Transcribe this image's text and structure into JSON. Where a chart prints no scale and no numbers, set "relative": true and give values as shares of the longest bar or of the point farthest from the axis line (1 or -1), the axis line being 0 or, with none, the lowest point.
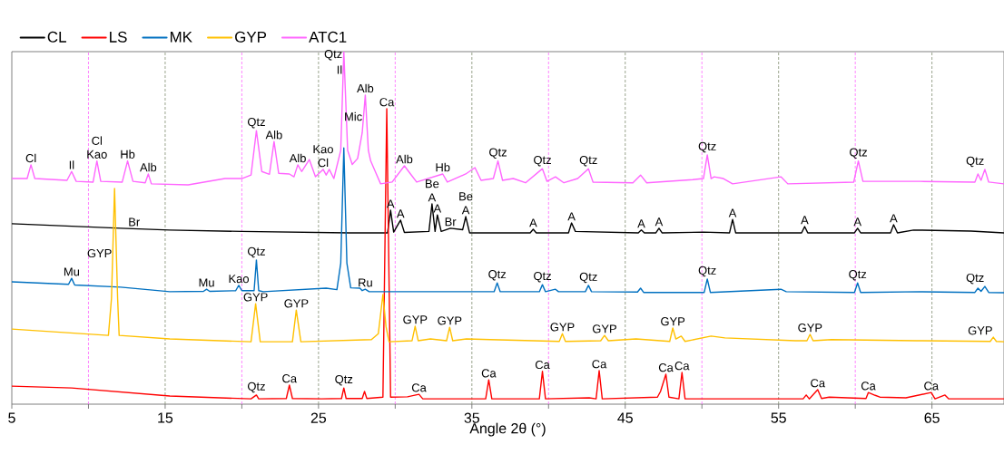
{
  "chart_data": {
    "type": "line",
    "relative": true,
    "xlabel": "Angle 2θ (°)",
    "xlim": [
      5,
      69.7
    ],
    "xticks": [
      5,
      {
        "value": 10,
        "label": null
      },
      15,
      {
        "value": 20,
        "label": null
      },
      25,
      {
        "value": 30,
        "label": null
      },
      35,
      {
        "value": 40,
        "label": null
      },
      45,
      {
        "value": 50,
        "label": null
      },
      55,
      {
        "value": 60,
        "label": null
      },
      65
    ],
    "legend": "top left",
    "series": [
      {
        "name": "CL",
        "color": "#000000",
        "x": [
          5,
          12.1,
          15.3,
          20,
          27,
          29.5,
          29.7,
          29.9,
          30.35,
          30.6,
          32.2,
          32.4,
          32.6,
          32.75,
          33.0,
          33.6,
          34.4,
          34.6,
          34.85,
          38.8,
          39.0,
          39.2,
          41.3,
          41.5,
          41.75,
          45.85,
          46.05,
          46.25,
          47.0,
          47.2,
          47.4,
          50.1,
          51.8,
          52.0,
          52.2,
          56.5,
          56.7,
          56.9,
          59.95,
          60.15,
          60.35,
          62.3,
          62.5,
          62.75,
          63.8,
          67.55,
          69.7
        ],
        "values": [
          0.512,
          0.499,
          0.494,
          0.49,
          0.486,
          0.486,
          0.55,
          0.488,
          0.522,
          0.487,
          0.49,
          0.568,
          0.49,
          0.537,
          0.49,
          0.499,
          0.495,
          0.532,
          0.486,
          0.486,
          0.496,
          0.486,
          0.486,
          0.514,
          0.49,
          0.486,
          0.494,
          0.486,
          0.486,
          0.499,
          0.486,
          0.488,
          0.486,
          0.524,
          0.486,
          0.486,
          0.504,
          0.486,
          0.486,
          0.499,
          0.486,
          0.486,
          0.509,
          0.486,
          0.494,
          0.491,
          0.486
        ]
      },
      {
        "name": "LS",
        "color": "#ff0000",
        "x": [
          5,
          8.9,
          15.3,
          20.6,
          20.95,
          21.1,
          22.9,
          23.1,
          23.3,
          25.2,
          26.5,
          26.65,
          26.8,
          27.85,
          28.0,
          28.15,
          29.2,
          29.45,
          29.7,
          30.8,
          31.55,
          31.8,
          35.9,
          36.1,
          36.3,
          39.4,
          39.6,
          39.8,
          42.65,
          43.1,
          43.3,
          43.5,
          47.1,
          47.3,
          47.65,
          47.85,
          48.5,
          48.7,
          48.9,
          56.6,
          56.8,
          57.0,
          57.55,
          57.8,
          58.3,
          60.7,
          60.85,
          61.3,
          61.6,
          63.3,
          64.95,
          65.2,
          65.85,
          66.1,
          69.7
        ],
        "values": [
          0.051,
          0.046,
          0.023,
          0.015,
          0.026,
          0.015,
          0.016,
          0.054,
          0.016,
          0.015,
          0.016,
          0.046,
          0.016,
          0.016,
          0.036,
          0.016,
          0.02,
          0.838,
          0.02,
          0.021,
          0.028,
          0.015,
          0.015,
          0.069,
          0.015,
          0.015,
          0.093,
          0.015,
          0.018,
          0.015,
          0.095,
          0.015,
          0.02,
          0.036,
          0.085,
          0.02,
          0.015,
          0.09,
          0.015,
          0.015,
          0.026,
          0.015,
          0.041,
          0.016,
          0.02,
          0.016,
          0.033,
          0.025,
          0.02,
          0.018,
          0.033,
          0.015,
          0.026,
          0.015,
          0.015
        ]
      },
      {
        "name": "MK",
        "color": "#0070c0",
        "x": [
          5,
          8.7,
          8.9,
          9.1,
          12.1,
          15.3,
          17.5,
          17.7,
          17.9,
          19.6,
          19.8,
          20.0,
          20.8,
          20.95,
          21.1,
          21.4,
          25.5,
          26.2,
          26.45,
          26.65,
          26.85,
          27.1,
          27.7,
          27.85,
          28.05,
          28.3,
          36.45,
          36.65,
          36.85,
          39.4,
          39.6,
          39.8,
          40.45,
          40.65,
          42.4,
          42.6,
          42.8,
          45.8,
          46.0,
          46.2,
          50.15,
          50.35,
          50.55,
          55.15,
          55.5,
          59.95,
          60.15,
          60.35,
          64.25,
          67.8,
          68.0,
          68.2,
          68.45,
          68.7,
          69.7
        ],
        "values": [
          0.347,
          0.34,
          0.357,
          0.338,
          0.332,
          0.319,
          0.32,
          0.326,
          0.32,
          0.322,
          0.337,
          0.322,
          0.322,
          0.409,
          0.322,
          0.319,
          0.329,
          0.325,
          0.4,
          0.727,
          0.4,
          0.33,
          0.329,
          0.322,
          0.326,
          0.319,
          0.319,
          0.344,
          0.319,
          0.319,
          0.339,
          0.319,
          0.326,
          0.319,
          0.319,
          0.337,
          0.319,
          0.318,
          0.329,
          0.317,
          0.317,
          0.355,
          0.317,
          0.326,
          0.319,
          0.317,
          0.344,
          0.317,
          0.319,
          0.317,
          0.329,
          0.32,
          0.334,
          0.317,
          0.316
        ]
      },
      {
        "name": "GYP",
        "color": "#ffc000",
        "x": [
          5,
          11.3,
          11.5,
          11.7,
          11.9,
          12.0,
          15.3,
          20.6,
          20.9,
          21.2,
          23.3,
          23.55,
          23.85,
          28.45,
          28.9,
          29.2,
          29.4,
          29.6,
          31.1,
          31.3,
          31.5,
          32.3,
          33.35,
          33.55,
          33.75,
          34.65,
          36.2,
          40.7,
          40.9,
          41.1,
          43.4,
          43.65,
          43.9,
          45.7,
          47.9,
          48.1,
          48.3,
          48.65,
          48.9,
          50.6,
          51.5,
          56.1,
          56.85,
          57.05,
          57.25,
          58.45,
          64.0,
          68.8,
          69.0,
          69.2,
          69.7
        ],
        "values": [
          0.213,
          0.195,
          0.3,
          0.612,
          0.3,
          0.195,
          0.185,
          0.177,
          0.285,
          0.177,
          0.177,
          0.267,
          0.177,
          0.183,
          0.2,
          0.311,
          0.22,
          0.177,
          0.18,
          0.221,
          0.18,
          0.185,
          0.18,
          0.218,
          0.18,
          0.185,
          0.183,
          0.178,
          0.2,
          0.178,
          0.18,
          0.195,
          0.18,
          0.185,
          0.178,
          0.216,
          0.185,
          0.193,
          0.178,
          0.193,
          0.188,
          0.18,
          0.18,
          0.198,
          0.18,
          0.183,
          0.18,
          0.178,
          0.19,
          0.178,
          0.177
        ]
      },
      {
        "name": "ATC1",
        "color": "#ff66ff",
        "x": [
          5,
          6.0,
          6.25,
          6.5,
          8.6,
          8.9,
          9.2,
          10.3,
          10.55,
          10.8,
          12.2,
          12.55,
          12.9,
          13.7,
          13.9,
          14.1,
          16.5,
          18.9,
          20.0,
          20.6,
          20.95,
          21.3,
          21.8,
          22.1,
          22.4,
          23.1,
          23.4,
          23.65,
          23.9,
          24.4,
          24.8,
          25.3,
          25.5,
          25.7,
          26.0,
          26.45,
          26.65,
          26.9,
          27.2,
          27.55,
          27.85,
          28.05,
          28.25,
          28.4,
          28.7,
          29.05,
          29.8,
          30.6,
          31.0,
          31.4,
          33.1,
          33.4,
          34.6,
          35.2,
          35.6,
          36.4,
          36.7,
          37.0,
          37.7,
          38.5,
          39.6,
          39.9,
          40.45,
          41.0,
          41.9,
          42.6,
          42.9,
          45.5,
          46.0,
          46.4,
          49.4,
          50.1,
          50.35,
          50.6,
          50.8,
          51.4,
          52.0,
          55.15,
          55.6,
          59.9,
          60.2,
          60.5,
          64.2,
          67.8,
          68.0,
          68.2,
          68.45,
          68.7,
          69.7
        ],
        "values": [
          0.64,
          0.64,
          0.679,
          0.64,
          0.635,
          0.66,
          0.632,
          0.63,
          0.69,
          0.632,
          0.63,
          0.69,
          0.632,
          0.628,
          0.653,
          0.625,
          0.622,
          0.64,
          0.64,
          0.65,
          0.776,
          0.66,
          0.652,
          0.745,
          0.655,
          0.653,
          0.645,
          0.679,
          0.66,
          0.694,
          0.645,
          0.666,
          0.65,
          0.666,
          0.64,
          0.72,
          1.0,
          0.72,
          0.68,
          0.697,
          0.77,
          0.877,
          0.72,
          0.69,
          0.66,
          0.625,
          0.63,
          0.676,
          0.653,
          0.63,
          0.653,
          0.63,
          0.653,
          0.671,
          0.635,
          0.64,
          0.69,
          0.635,
          0.64,
          0.628,
          0.668,
          0.632,
          0.645,
          0.628,
          0.64,
          0.668,
          0.63,
          0.628,
          0.65,
          0.628,
          0.637,
          0.64,
          0.707,
          0.64,
          0.645,
          0.64,
          0.625,
          0.645,
          0.625,
          0.63,
          0.69,
          0.632,
          0.632,
          0.63,
          0.653,
          0.635,
          0.666,
          0.63,
          0.625
        ]
      }
    ],
    "ref_lines": [
      {
        "axis": "x",
        "value": 10,
        "color": "#ff66ff",
        "line_style": "dashed"
      },
      {
        "axis": "x",
        "value": 20,
        "color": "#ff66ff",
        "line_style": "dashed"
      },
      {
        "axis": "x",
        "value": 30,
        "color": "#ff66ff",
        "line_style": "dashed"
      },
      {
        "axis": "x",
        "value": 40,
        "color": "#ff66ff",
        "line_style": "dashed"
      },
      {
        "axis": "x",
        "value": 50,
        "color": "#ff66ff",
        "line_style": "dashed"
      },
      {
        "axis": "x",
        "value": 60,
        "color": "#ff66ff",
        "line_style": "dashed"
      },
      {
        "axis": "x",
        "value": 15,
        "color": "#7f8c6f",
        "line_style": "dashed"
      },
      {
        "axis": "x",
        "value": 25,
        "color": "#7f8c6f",
        "line_style": "dashed"
      },
      {
        "axis": "x",
        "value": 35,
        "color": "#7f8c6f",
        "line_style": "dashed"
      },
      {
        "axis": "x",
        "value": 45,
        "color": "#7f8c6f",
        "line_style": "dashed"
      },
      {
        "axis": "x",
        "value": 55,
        "color": "#7f8c6f",
        "line_style": "dashed"
      },
      {
        "axis": "x",
        "value": 65,
        "color": "#7f8c6f",
        "line_style": "dashed"
      }
    ],
    "annotations": [
      {
        "text": "Cl",
        "x": 6.25,
        "y": 0.679
      },
      {
        "text": "Il",
        "x": 8.9,
        "y": 0.66
      },
      {
        "text": "Cl",
        "x": 10.55,
        "y": 0.69
      },
      {
        "text": "Kao",
        "x": 10.55,
        "y": 0.69
      },
      {
        "text": "Hb",
        "x": 12.55,
        "y": 0.69
      },
      {
        "text": "Alb",
        "x": 13.9,
        "y": 0.653
      },
      {
        "text": "Qtz",
        "x": 20.95,
        "y": 0.776
      },
      {
        "text": "Alb",
        "x": 22.1,
        "y": 0.745
      },
      {
        "text": "Alb",
        "x": 23.65,
        "y": 0.679
      },
      {
        "text": "Kao",
        "x": 25.3,
        "y": 0.666
      },
      {
        "text": "Cl",
        "x": 25.3,
        "y": 0.666
      },
      {
        "text": "Qtz",
        "x": 26.6,
        "y": 0.93
      },
      {
        "text": "Il",
        "x": 26.6,
        "y": 0.93
      },
      {
        "text": "Mic",
        "x": 27.9,
        "y": 0.7968
      },
      {
        "text": "Alb",
        "x": 28.05,
        "y": 0.877
      },
      {
        "text": "Ca",
        "x": 29.45,
        "y": 0.838
      },
      {
        "text": "Alb",
        "x": 30.6,
        "y": 0.676
      },
      {
        "text": "Hb",
        "x": 33.1,
        "y": 0.653
      },
      {
        "text": "Qtz",
        "x": 36.7,
        "y": 0.69
      },
      {
        "text": "Qtz",
        "x": 39.6,
        "y": 0.668
      },
      {
        "text": "Qtz",
        "x": 42.6,
        "y": 0.668
      },
      {
        "text": "Qtz",
        "x": 50.35,
        "y": 0.707
      },
      {
        "text": "Qtz",
        "x": 60.2,
        "y": 0.69
      },
      {
        "text": "Qtz",
        "x": 68.45,
        "y": 0.666
      },
      {
        "text": "Br",
        "x": 12.55,
        "y": 0.4983
      },
      {
        "text": "A",
        "x": 29.7,
        "y": 0.55
      },
      {
        "text": "A",
        "x": 30.35,
        "y": 0.522
      },
      {
        "text": "Be",
        "x": 32.4,
        "y": 0.568
      },
      {
        "text": "A",
        "x": 32.4,
        "y": 0.568
      },
      {
        "text": "A",
        "x": 32.75,
        "y": 0.537
      },
      {
        "text": "Br",
        "x": 33.6,
        "y": 0.499
      },
      {
        "text": "Be",
        "x": 34.6,
        "y": 0.532
      },
      {
        "text": "A",
        "x": 34.6,
        "y": 0.532
      },
      {
        "text": "A",
        "x": 39.0,
        "y": 0.496
      },
      {
        "text": "A",
        "x": 41.5,
        "y": 0.514
      },
      {
        "text": "A",
        "x": 46.05,
        "y": 0.494
      },
      {
        "text": "A",
        "x": 47.2,
        "y": 0.499
      },
      {
        "text": "A",
        "x": 52.0,
        "y": 0.524
      },
      {
        "text": "A",
        "x": 56.7,
        "y": 0.504
      },
      {
        "text": "A",
        "x": 60.15,
        "y": 0.499
      },
      {
        "text": "A",
        "x": 62.5,
        "y": 0.509
      },
      {
        "text": "Mu",
        "x": 8.9,
        "y": 0.357
      },
      {
        "text": "GYP",
        "x": 11.57,
        "y": 0.4092
      },
      {
        "text": "Mu",
        "x": 17.7,
        "y": 0.326
      },
      {
        "text": "Kao",
        "x": 19.8,
        "y": 0.337
      },
      {
        "text": "Qtz",
        "x": 20.95,
        "y": 0.409
      },
      {
        "text": "Ru",
        "x": 28.05,
        "y": 0.326
      },
      {
        "text": "Qtz",
        "x": 36.65,
        "y": 0.344
      },
      {
        "text": "Qtz",
        "x": 39.6,
        "y": 0.339
      },
      {
        "text": "Qtz",
        "x": 42.6,
        "y": 0.337
      },
      {
        "text": "Qtz",
        "x": 50.35,
        "y": 0.355
      },
      {
        "text": "Qtz",
        "x": 60.15,
        "y": 0.344
      },
      {
        "text": "Qtz",
        "x": 68.45,
        "y": 0.334
      },
      {
        "text": "GYP",
        "x": 20.9,
        "y": 0.285
      },
      {
        "text": "GYP",
        "x": 23.55,
        "y": 0.267
      },
      {
        "text": "GYP",
        "x": 31.3,
        "y": 0.221
      },
      {
        "text": "GYP",
        "x": 33.55,
        "y": 0.218
      },
      {
        "text": "GYP",
        "x": 40.9,
        "y": 0.2
      },
      {
        "text": "GYP",
        "x": 43.65,
        "y": 0.195
      },
      {
        "text": "GYP",
        "x": 48.1,
        "y": 0.216
      },
      {
        "text": "GYP",
        "x": 57.05,
        "y": 0.198
      },
      {
        "text": "GYP",
        "x": 69.0,
        "y": 0.19
      },
      {
        "text": "Qtz",
        "x": 20.95,
        "y": 0.026
      },
      {
        "text": "Ca",
        "x": 23.1,
        "y": 0.054
      },
      {
        "text": "Qtz",
        "x": 26.65,
        "y": 0.046
      },
      {
        "text": "Ca",
        "x": 31.55,
        "y": 0.028
      },
      {
        "text": "Ca",
        "x": 36.1,
        "y": 0.069
      },
      {
        "text": "Ca",
        "x": 39.6,
        "y": 0.093
      },
      {
        "text": "Ca",
        "x": 43.3,
        "y": 0.095
      },
      {
        "text": "Ca",
        "x": 47.65,
        "y": 0.085
      },
      {
        "text": "Ca",
        "x": 48.7,
        "y": 0.09
      },
      {
        "text": "Ca",
        "x": 57.55,
        "y": 0.041
      },
      {
        "text": "Ca",
        "x": 60.85,
        "y": 0.033
      },
      {
        "text": "Ca",
        "x": 64.95,
        "y": 0.033
      }
    ]
  }
}
